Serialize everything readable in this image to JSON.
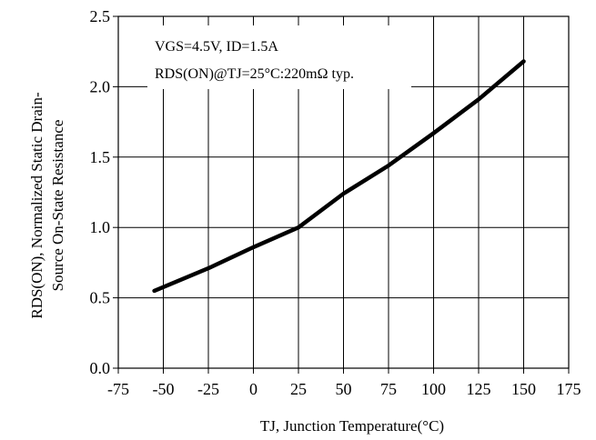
{
  "chart_data": {
    "type": "line",
    "title": "",
    "xlabel": "TJ, Junction Temperature(°C)",
    "ylabel_line1": "RDS(ON), Normalized Static Drain-",
    "ylabel_line2": "Source On-State Resistance",
    "xlim": [
      -75,
      175
    ],
    "ylim": [
      0,
      2.5
    ],
    "x_ticks": [
      -75,
      -50,
      -25,
      0,
      25,
      50,
      75,
      100,
      125,
      150,
      175
    ],
    "x_tick_labels": [
      "-75",
      "-50",
      "-25",
      "0",
      "25",
      "50",
      "75",
      "100",
      "125",
      "150",
      "175"
    ],
    "y_ticks": [
      0,
      0.5,
      1.0,
      1.5,
      2.0,
      2.5
    ],
    "y_tick_labels": [
      "0.0",
      "0.5",
      "1.0",
      "1.5",
      "2.0",
      "2.5"
    ],
    "grid": true,
    "annotations": [
      "VGS=4.5V, ID=1.5A",
      "RDS(ON)@TJ=25°C:220mΩ typ."
    ],
    "series": [
      {
        "x": [
          -55,
          -25,
          0,
          25,
          50,
          75,
          100,
          125,
          150
        ],
        "values": [
          0.55,
          0.71,
          0.86,
          1.0,
          1.24,
          1.44,
          1.67,
          1.91,
          2.18
        ]
      }
    ]
  }
}
